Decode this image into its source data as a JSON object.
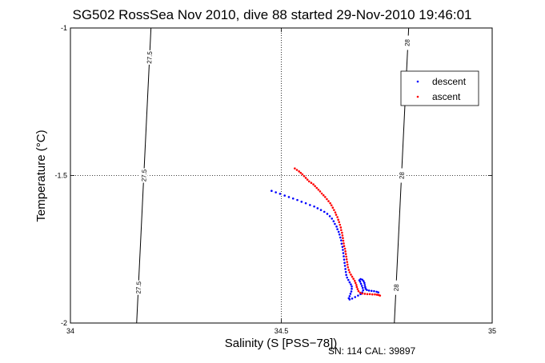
{
  "chart_data": {
    "type": "scatter",
    "title": "SG502 RossSea Nov 2010, dive 88 started 29-Nov-2010 19:46:01",
    "xlabel": "Salinity (S [PSS−78])",
    "ylabel": "Temperature (°C)",
    "xlim": [
      34,
      35
    ],
    "ylim": [
      -2,
      -1
    ],
    "x_ticks": [
      34,
      34.5,
      35
    ],
    "x_tick_labels": [
      "34",
      "34.5",
      "35"
    ],
    "y_ticks": [
      -2,
      -1.5,
      -1
    ],
    "y_tick_labels": [
      "-2",
      "-1.5",
      "-1"
    ],
    "grid": true,
    "legend_position": "top-right",
    "contours": [
      {
        "label": "27.5",
        "points": [
          [
            34.157,
            -2
          ],
          [
            34.191,
            -1
          ]
        ],
        "label_positions": [
          [
            34.161,
            -1.88
          ],
          [
            34.174,
            -1.5
          ],
          [
            34.187,
            -1.1
          ]
        ]
      },
      {
        "label": "28",
        "points": [
          [
            34.768,
            -2
          ],
          [
            34.802,
            -1
          ]
        ],
        "label_positions": [
          [
            34.772,
            -1.88
          ],
          [
            34.785,
            -1.5
          ],
          [
            34.798,
            -1.05
          ]
        ]
      }
    ],
    "series": [
      {
        "name": "descent",
        "color": "#0000ff",
        "points": [
          [
            34.477,
            -1.552
          ],
          [
            34.487,
            -1.557
          ],
          [
            34.497,
            -1.562
          ],
          [
            34.508,
            -1.568
          ],
          [
            34.518,
            -1.573
          ],
          [
            34.528,
            -1.578
          ],
          [
            34.538,
            -1.583
          ],
          [
            34.548,
            -1.589
          ],
          [
            34.558,
            -1.594
          ],
          [
            34.568,
            -1.6
          ],
          [
            34.578,
            -1.605
          ],
          [
            34.586,
            -1.611
          ],
          [
            34.594,
            -1.617
          ],
          [
            34.602,
            -1.623
          ],
          [
            34.609,
            -1.63
          ],
          [
            34.615,
            -1.638
          ],
          [
            34.62,
            -1.646
          ],
          [
            34.624,
            -1.655
          ],
          [
            34.627,
            -1.664
          ],
          [
            34.631,
            -1.673
          ],
          [
            34.633,
            -1.682
          ],
          [
            34.636,
            -1.691
          ],
          [
            34.638,
            -1.7
          ],
          [
            34.64,
            -1.71
          ],
          [
            34.642,
            -1.72
          ],
          [
            34.643,
            -1.731
          ],
          [
            34.645,
            -1.742
          ],
          [
            34.646,
            -1.752
          ],
          [
            34.647,
            -1.763
          ],
          [
            34.648,
            -1.774
          ],
          [
            34.649,
            -1.785
          ],
          [
            34.65,
            -1.796
          ],
          [
            34.651,
            -1.806
          ],
          [
            34.652,
            -1.817
          ],
          [
            34.653,
            -1.827
          ],
          [
            34.654,
            -1.837
          ],
          [
            34.656,
            -1.846
          ],
          [
            34.659,
            -1.854
          ],
          [
            34.662,
            -1.862
          ],
          [
            34.665,
            -1.869
          ],
          [
            34.667,
            -1.876
          ],
          [
            34.667,
            -1.884
          ],
          [
            34.666,
            -1.893
          ],
          [
            34.664,
            -1.901
          ],
          [
            34.662,
            -1.909
          ],
          [
            34.66,
            -1.916
          ],
          [
            34.662,
            -1.92
          ],
          [
            34.668,
            -1.917
          ],
          [
            34.675,
            -1.912
          ],
          [
            34.682,
            -1.907
          ],
          [
            34.688,
            -1.902
          ],
          [
            34.692,
            -1.896
          ],
          [
            34.694,
            -1.889
          ],
          [
            34.693,
            -1.881
          ],
          [
            34.691,
            -1.874
          ],
          [
            34.689,
            -1.867
          ],
          [
            34.687,
            -1.86
          ],
          [
            34.685,
            -1.855
          ],
          [
            34.688,
            -1.851
          ],
          [
            34.692,
            -1.853
          ],
          [
            34.695,
            -1.858
          ],
          [
            34.697,
            -1.864
          ],
          [
            34.698,
            -1.871
          ],
          [
            34.699,
            -1.878
          ],
          [
            34.7,
            -1.884
          ],
          [
            34.703,
            -1.888
          ],
          [
            34.708,
            -1.89
          ],
          [
            34.714,
            -1.891
          ],
          [
            34.72,
            -1.892
          ],
          [
            34.726,
            -1.894
          ],
          [
            34.73,
            -1.896
          ]
        ]
      },
      {
        "name": "ascent",
        "color": "#ff0000",
        "points": [
          [
            34.532,
            -1.476
          ],
          [
            34.537,
            -1.481
          ],
          [
            34.542,
            -1.486
          ],
          [
            34.546,
            -1.491
          ],
          [
            34.55,
            -1.496
          ],
          [
            34.554,
            -1.502
          ],
          [
            34.558,
            -1.508
          ],
          [
            34.562,
            -1.514
          ],
          [
            34.566,
            -1.52
          ],
          [
            34.571,
            -1.525
          ],
          [
            34.576,
            -1.53
          ],
          [
            34.58,
            -1.536
          ],
          [
            34.584,
            -1.542
          ],
          [
            34.588,
            -1.548
          ],
          [
            34.592,
            -1.554
          ],
          [
            34.596,
            -1.561
          ],
          [
            34.6,
            -1.567
          ],
          [
            34.604,
            -1.573
          ],
          [
            34.608,
            -1.58
          ],
          [
            34.612,
            -1.587
          ],
          [
            34.616,
            -1.594
          ],
          [
            34.619,
            -1.601
          ],
          [
            34.622,
            -1.609
          ],
          [
            34.625,
            -1.617
          ],
          [
            34.628,
            -1.625
          ],
          [
            34.63,
            -1.633
          ],
          [
            34.633,
            -1.641
          ],
          [
            34.635,
            -1.65
          ],
          [
            34.637,
            -1.658
          ],
          [
            34.639,
            -1.667
          ],
          [
            34.641,
            -1.676
          ],
          [
            34.642,
            -1.685
          ],
          [
            34.644,
            -1.694
          ],
          [
            34.645,
            -1.703
          ],
          [
            34.646,
            -1.712
          ],
          [
            34.647,
            -1.721
          ],
          [
            34.648,
            -1.73
          ],
          [
            34.649,
            -1.739
          ],
          [
            34.651,
            -1.748
          ],
          [
            34.652,
            -1.757
          ],
          [
            34.653,
            -1.766
          ],
          [
            34.654,
            -1.775
          ],
          [
            34.655,
            -1.784
          ],
          [
            34.656,
            -1.793
          ],
          [
            34.657,
            -1.802
          ],
          [
            34.658,
            -1.811
          ],
          [
            34.66,
            -1.82
          ],
          [
            34.662,
            -1.828
          ],
          [
            34.665,
            -1.836
          ],
          [
            34.668,
            -1.843
          ],
          [
            34.671,
            -1.85
          ],
          [
            34.674,
            -1.857
          ],
          [
            34.676,
            -1.864
          ],
          [
            34.678,
            -1.871
          ],
          [
            34.679,
            -1.878
          ],
          [
            34.681,
            -1.885
          ],
          [
            34.683,
            -1.892
          ],
          [
            34.687,
            -1.897
          ],
          [
            34.692,
            -1.9
          ],
          [
            34.698,
            -1.901
          ],
          [
            34.704,
            -1.902
          ],
          [
            34.71,
            -1.902
          ],
          [
            34.716,
            -1.903
          ],
          [
            34.722,
            -1.903
          ],
          [
            34.727,
            -1.904
          ],
          [
            34.731,
            -1.905
          ],
          [
            34.734,
            -1.907
          ]
        ]
      }
    ],
    "footer": "SN: 114  CAL: 39897"
  }
}
